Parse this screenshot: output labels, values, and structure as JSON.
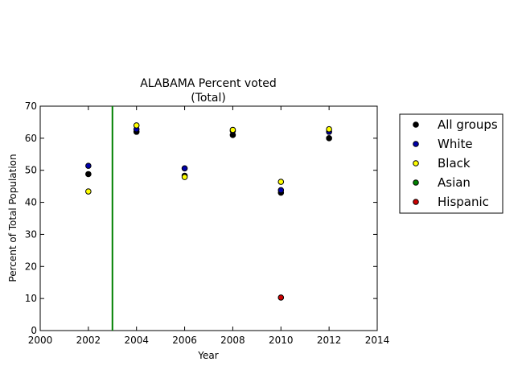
{
  "chart_data": {
    "type": "scatter",
    "title": "ALABAMA Percent voted",
    "subtitle": "(Total)",
    "xlabel": "Year",
    "ylabel": "Percent of Total Population",
    "xlim": [
      2000,
      2014
    ],
    "ylim": [
      0,
      70
    ],
    "x_ticks": [
      "2000",
      "2002",
      "2004",
      "2006",
      "2008",
      "2010",
      "2012",
      "2014"
    ],
    "y_ticks": [
      "0",
      "10",
      "20",
      "30",
      "40",
      "50",
      "60",
      "70"
    ],
    "grid": false,
    "legend_position": "outside-right",
    "vertical_line": {
      "x": 2003,
      "color": "#008000"
    },
    "series": [
      {
        "name": "All groups",
        "color": "#000000",
        "points": [
          [
            2002,
            48.8
          ],
          [
            2004,
            62.0
          ],
          [
            2006,
            48.3
          ],
          [
            2008,
            61.0
          ],
          [
            2010,
            43.0
          ],
          [
            2012,
            60.0
          ]
        ]
      },
      {
        "name": "White",
        "color": "#0000aa",
        "points": [
          [
            2002,
            51.4
          ],
          [
            2004,
            62.8
          ],
          [
            2006,
            50.6
          ],
          [
            2008,
            62.3
          ],
          [
            2010,
            43.8
          ],
          [
            2012,
            62.0
          ]
        ]
      },
      {
        "name": "Black",
        "color": "#ffff00",
        "points": [
          [
            2002,
            43.4
          ],
          [
            2004,
            64.0
          ],
          [
            2006,
            47.9
          ],
          [
            2008,
            62.6
          ],
          [
            2010,
            46.4
          ],
          [
            2012,
            62.8
          ]
        ]
      },
      {
        "name": "Asian",
        "color": "#008000",
        "points": []
      },
      {
        "name": "Hispanic",
        "color": "#cc0000",
        "points": [
          [
            2010,
            10.3
          ]
        ]
      }
    ]
  }
}
